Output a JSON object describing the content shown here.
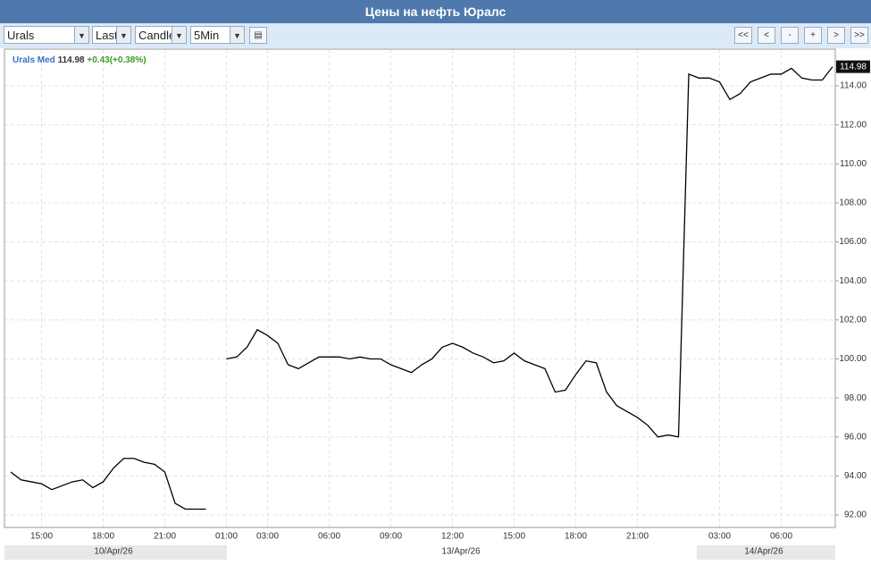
{
  "header": {
    "title": "Цены на нефть Юралс"
  },
  "toolbar": {
    "selects": [
      "Urals",
      "Last",
      "Candle",
      "5Min"
    ],
    "buttons": [
      "<<",
      "<",
      "-",
      "+",
      ">",
      ">>"
    ]
  },
  "chart_data": {
    "type": "line",
    "legend": {
      "name": "Urals Med",
      "last": "114.98",
      "change": "+0.43(+0.38%)"
    },
    "categories": [
      null,
      null,
      null,
      "15:00",
      null,
      null,
      null,
      null,
      null,
      "18:00",
      null,
      null,
      null,
      null,
      null,
      "21:00",
      null,
      null,
      null,
      null,
      null,
      "01:00",
      null,
      null,
      null,
      "03:00",
      null,
      null,
      null,
      null,
      null,
      "06:00",
      null,
      null,
      null,
      null,
      null,
      "09:00",
      null,
      null,
      null,
      null,
      null,
      "12:00",
      null,
      null,
      null,
      null,
      null,
      "15:00",
      null,
      null,
      null,
      null,
      null,
      "18:00",
      null,
      null,
      null,
      null,
      null,
      "21:00",
      null,
      null,
      null,
      null,
      null,
      null,
      null,
      "03:00",
      null,
      null,
      null,
      null,
      null,
      "06:00",
      null,
      null,
      null,
      null,
      null
    ],
    "series": [
      {
        "name": "Urals Med",
        "color": "#000000",
        "values": [
          94.2,
          93.8,
          93.7,
          93.6,
          93.3,
          93.5,
          93.7,
          93.8,
          93.4,
          93.7,
          94.4,
          94.9,
          94.9,
          94.7,
          94.6,
          94.2,
          92.6,
          92.3,
          92.3,
          92.3,
          null,
          100.0,
          100.1,
          100.6,
          101.5,
          101.2,
          100.8,
          99.7,
          99.5,
          99.8,
          100.1,
          100.1,
          100.1,
          100.0,
          100.1,
          100.0,
          100.0,
          99.7,
          99.5,
          99.3,
          99.7,
          100.0,
          100.6,
          100.8,
          100.6,
          100.3,
          100.1,
          99.8,
          99.9,
          100.3,
          99.9,
          99.7,
          99.5,
          98.3,
          98.4,
          99.2,
          99.9,
          99.8,
          98.3,
          97.6,
          97.3,
          97.0,
          96.6,
          96.0,
          96.1,
          96.0,
          114.6,
          114.4,
          114.4,
          114.2,
          113.3,
          113.6,
          114.2,
          114.4,
          114.6,
          114.6,
          114.9,
          114.4,
          114.3,
          114.3,
          114.98
        ]
      }
    ],
    "ylim": [
      91.36,
      115.88
    ],
    "yticks": [
      {
        "value": 92,
        "label": "92.00"
      },
      {
        "value": 94,
        "label": "94.00"
      },
      {
        "value": 96,
        "label": "96.00"
      },
      {
        "value": 98,
        "label": "98.00"
      },
      {
        "value": 100,
        "label": "100.00"
      },
      {
        "value": 102,
        "label": "102.00"
      },
      {
        "value": 104,
        "label": "104.00"
      },
      {
        "value": 106,
        "label": "106.00"
      },
      {
        "value": 108,
        "label": "108.00"
      },
      {
        "value": 110,
        "label": "110.00"
      },
      {
        "value": 112,
        "label": "112.00"
      },
      {
        "value": 114,
        "label": "114.00"
      }
    ],
    "grid": true,
    "dates": [
      "10/Apr/26",
      "13/Apr/26",
      "14/Apr/26"
    ]
  }
}
